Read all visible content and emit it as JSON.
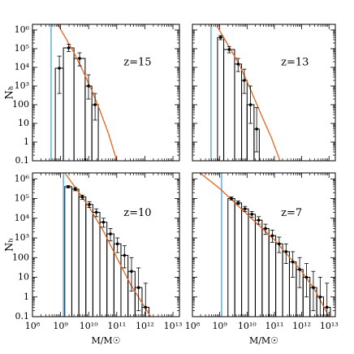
{
  "chart_data": [
    {
      "type": "histogram",
      "label": "z=15",
      "ylabel": "Nₕ",
      "log_x": true,
      "log_y": true,
      "xlim": [
        100000000.0,
        17000000000000.0
      ],
      "ylim": [
        0.1,
        2000000.0
      ],
      "xticks": [
        100000000.0,
        1000000000.0,
        10000000000.0,
        100000000000.0,
        1000000000000.0,
        10000000000000.0
      ],
      "yticks": [
        0.1,
        1,
        10,
        100,
        {
          "value": 1000,
          "label": "10³"
        },
        {
          "value": 10000,
          "label": "10⁴"
        },
        {
          "value": 100000,
          "label": "10⁵"
        },
        {
          "value": 1000000,
          "label": "10⁶"
        }
      ],
      "color": "#000000",
      "bins": [
        650000000.0,
        1260000000.0,
        3000000000.0,
        7500000000.0,
        13000000000.0,
        22000000000.0
      ],
      "values": [
        9000,
        110000,
        30000,
        1000,
        100
      ],
      "lower": [
        400,
        70000,
        12000,
        200,
        15
      ],
      "upper": [
        40000,
        170000,
        60000,
        4000,
        400
      ],
      "curve": {
        "color": "#e8641e",
        "x": [
          790000000.0,
          1600000000.0,
          3200000000.0,
          6300000000.0,
          12600000000.0,
          25000000000.0,
          50000000000.0,
          100000000000.0
        ],
        "y": [
          2000000.0,
          320000.0,
          50000.0,
          6300,
          630,
          50,
          3,
          0.1
        ]
      },
      "vline": {
        "color": "#3a9ad9",
        "x": 460000000.0
      }
    },
    {
      "type": "histogram",
      "label": "z=13",
      "log_x": true,
      "log_y": true,
      "xlim": [
        100000000.0,
        17000000000000.0
      ],
      "ylim": [
        0.1,
        2000000.0
      ],
      "xticks": [
        100000000.0,
        1000000000.0,
        10000000000.0,
        100000000000.0,
        1000000000000.0,
        10000000000000.0
      ],
      "yticks": [
        0.1,
        1,
        10,
        100,
        1000,
        10000,
        100000,
        1000000
      ],
      "color": "#000000",
      "bins": [
        830000000.0,
        1400000000.0,
        3500000000.0,
        6300000000.0,
        10000000000.0,
        18000000000.0,
        28000000000.0
      ],
      "values": [
        400000,
        90000,
        15000,
        2000,
        100,
        5
      ],
      "lower": [
        300000,
        60000,
        6000,
        400,
        10,
        0.3
      ],
      "upper": [
        500000,
        130000,
        30000,
        8000,
        1000,
        70
      ],
      "curve": {
        "color": "#e8641e",
        "x": [
          790000000.0,
          2000000000.0,
          5000000000.0,
          12600000000.0,
          32000000000.0,
          79000000000.0,
          160000000000.0
        ],
        "y": [
          1600000.0,
          160000.0,
          16000.0,
          800,
          32,
          1.6,
          0.1
        ]
      },
      "vline": {
        "color": "#3a9ad9",
        "x": 480000000.0
      }
    },
    {
      "type": "histogram",
      "label": "z=10",
      "ylabel": "Nₕ",
      "xlabel": "M/M☉",
      "log_x": true,
      "log_y": true,
      "xlim": [
        100000000.0,
        17000000000000.0
      ],
      "ylim": [
        0.1,
        2000000.0
      ],
      "xticks": [
        {
          "value": 100000000.0,
          "label": "10⁸"
        },
        {
          "value": 1000000000.0,
          "label": "10⁹"
        },
        {
          "value": 10000000000.0,
          "label": "10¹⁰"
        },
        {
          "value": 100000000000.0,
          "label": "10¹¹"
        },
        {
          "value": 1000000000000.0,
          "label": "10¹²"
        },
        {
          "value": 10000000000000.0,
          "label": "10¹³"
        }
      ],
      "yticks": [
        0.1,
        1,
        10,
        100,
        {
          "value": 1000,
          "label": "10³"
        },
        {
          "value": 10000,
          "label": "10⁴"
        },
        {
          "value": 100000,
          "label": "10⁵"
        },
        {
          "value": 1000000,
          "label": "10⁶"
        }
      ],
      "color": "#000000",
      "bins": [
        1410000000.0,
        2510000000.0,
        4470000000.0,
        7940000000.0,
        14100000000.0,
        25100000000.0,
        44700000000.0,
        79400000000.0,
        141000000000.0,
        251000000000.0,
        447000000000.0,
        794000000000.0,
        1410000000000.0
      ],
      "values": [
        400000,
        300000,
        120000,
        50000,
        20000,
        6300,
        1600,
        500,
        130,
        20,
        3,
        0.3
      ],
      "lower": [
        350000,
        250000,
        90000,
        35000,
        12000,
        3500,
        700,
        180,
        30,
        2,
        0.2,
        0.1
      ],
      "upper": [
        450000,
        360000,
        150000,
        70000,
        30000,
        10000,
        3000,
        1000,
        400,
        100,
        30,
        5
      ],
      "curve": {
        "color": "#e8641e",
        "x": [
          1260000000.0,
          3200000000.0,
          10000000000.0,
          32000000000.0,
          100000000000.0,
          320000000000.0,
          1000000000000.0,
          1600000000000.0
        ],
        "y": [
          2500000.0,
          400000.0,
          40000.0,
          2500,
          100,
          4,
          0.3,
          0.1
        ]
      },
      "vline": {
        "color": "#3a9ad9",
        "x": 1260000000.0
      }
    },
    {
      "type": "histogram",
      "label": "z=7",
      "xlabel": "M/M☉",
      "log_x": true,
      "log_y": true,
      "xlim": [
        100000000.0,
        17000000000000.0
      ],
      "ylim": [
        0.1,
        2000000.0
      ],
      "xticks": [
        {
          "value": 100000000.0,
          "label": "10⁸"
        },
        {
          "value": 1000000000.0,
          "label": "10⁹"
        },
        {
          "value": 10000000000.0,
          "label": "10¹⁰"
        },
        {
          "value": 100000000000.0,
          "label": "10¹¹"
        },
        {
          "value": 1000000000000.0,
          "label": "10¹²"
        },
        {
          "value": 10000000000000.0,
          "label": "10¹³"
        }
      ],
      "yticks": [
        0.1,
        1,
        10,
        100,
        1000,
        10000,
        100000,
        1000000
      ],
      "color": "#000000",
      "bins": [
        2000000000.0,
        3550000000.0,
        6310000000.0,
        11200000000.0,
        20000000000.0,
        35500000000.0,
        63100000000.0,
        112000000000.0,
        200000000000.0,
        355000000000.0,
        631000000000.0,
        1120000000000.0,
        2000000000000.0,
        3550000000000.0,
        6310000000000.0,
        11200000000000.0
      ],
      "values": [
        100000,
        60000,
        30000,
        16000,
        8000,
        3000,
        1300,
        500,
        200,
        60,
        25,
        10,
        3,
        1,
        0.3
      ],
      "lower": [
        85000,
        50000,
        22000,
        11000,
        5000,
        1500,
        600,
        180,
        50,
        10,
        3,
        1,
        0.2,
        0.1,
        0.1
      ],
      "upper": [
        120000,
        75000,
        40000,
        22000,
        12000,
        5000,
        2500,
        1100,
        500,
        200,
        100,
        50,
        20,
        10,
        5
      ],
      "curve": {
        "color": "#e8641e",
        "x": [
          100000000.0,
          1000000000.0,
          10000000000.0,
          100000000000.0,
          1000000000000.0,
          3200000000000.0,
          10000000000000.0
        ],
        "y": [
          4000000.0,
          320000.0,
          16000,
          800,
          20,
          2,
          0.1
        ]
      },
      "vline": {
        "color": "#3a9ad9",
        "x": 1170000000.0
      }
    }
  ]
}
